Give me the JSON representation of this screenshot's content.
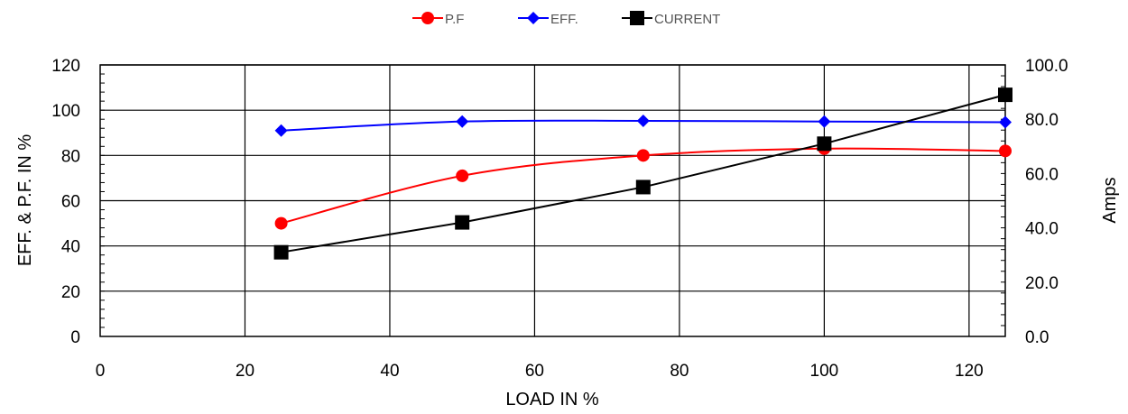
{
  "chart_data": {
    "type": "line",
    "title": "",
    "xlabel": "LOAD IN %",
    "ylabel": "EFF. & P.F. IN %",
    "y2label": "Amps",
    "xlim": [
      0,
      125
    ],
    "ylim": [
      0,
      120
    ],
    "y2lim": [
      0,
      100
    ],
    "x_ticks": [
      "0",
      "20",
      "40",
      "60",
      "80",
      "100",
      "120"
    ],
    "y_ticks": [
      "0",
      "20",
      "40",
      "60",
      "80",
      "100",
      "120"
    ],
    "y2_ticks": [
      "0.0",
      "20.0",
      "40.0",
      "60.0",
      "80.0",
      "100.0"
    ],
    "grid": true,
    "legend_position": "top-center",
    "x": [
      25,
      50,
      75,
      100,
      125
    ],
    "series": [
      {
        "name": "P.F",
        "axis": "left",
        "color": "#ff0000",
        "marker": "circle",
        "smooth": true,
        "values": [
          50,
          71,
          80,
          83,
          82
        ]
      },
      {
        "name": "EFF.",
        "axis": "left",
        "color": "#0000ff",
        "marker": "diamond",
        "smooth": true,
        "values": [
          91,
          95,
          95.3,
          95,
          94.7
        ]
      },
      {
        "name": "CURRENT",
        "axis": "right",
        "color": "#000000",
        "marker": "square",
        "smooth": false,
        "values": [
          31,
          42,
          55,
          71,
          89
        ]
      }
    ]
  }
}
